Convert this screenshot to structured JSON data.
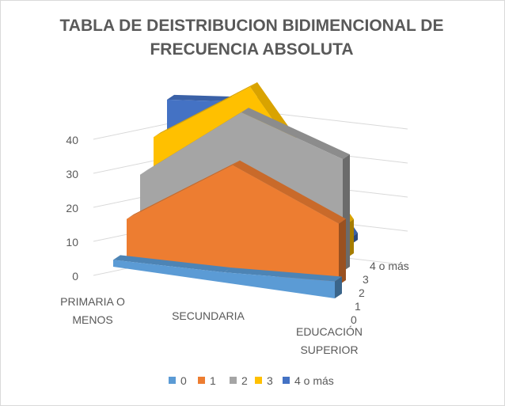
{
  "chart_data": {
    "type": "area",
    "view": "3d",
    "title_lines": [
      "TABLA DE DEISTRIBUCION BIDIMENCIONAL DE",
      "FRECUENCIA ABSOLUTA"
    ],
    "categories": [
      "PRIMARIA O MENOS",
      "SECUNDARIA",
      "EDUCACIÓN SUPERIOR"
    ],
    "category_label_lines": [
      [
        "PRIMARIA O",
        "MENOS"
      ],
      [
        "SECUNDARIA"
      ],
      [
        "EDUCACIÓN",
        "SUPERIOR"
      ]
    ],
    "series": [
      {
        "name": "0",
        "values": [
          2,
          3,
          5
        ],
        "color": "#5b9bd5"
      },
      {
        "name": "1",
        "values": [
          11,
          31,
          18
        ],
        "color": "#ed7d31"
      },
      {
        "name": "2",
        "values": [
          21,
          43,
          33
        ],
        "color": "#a5a5a5"
      },
      {
        "name": "3",
        "values": [
          29,
          47,
          10
        ],
        "color": "#ffc000"
      },
      {
        "name": "4 o más",
        "values": [
          37,
          39,
          2
        ],
        "color": "#4472c4"
      }
    ],
    "yticks": [
      0,
      10,
      20,
      30,
      40
    ],
    "ylim": [
      0,
      45
    ],
    "grid": true,
    "legend_position": "bottom"
  }
}
